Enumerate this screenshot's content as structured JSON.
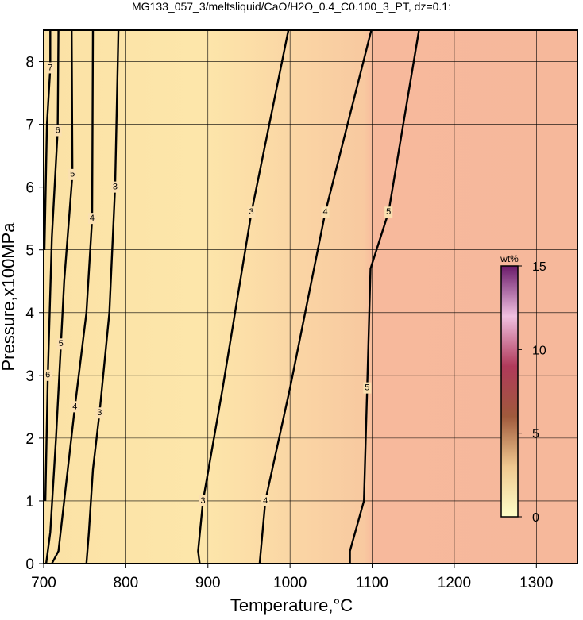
{
  "chart_data": {
    "type": "contour",
    "title": "MG133_057_3/meltsliquid/CaO/H2O_0.4_C0.100_3_PT, dz=0.1:",
    "x_label": "Temperature,°C",
    "y_label": "Pressure,x100MPa",
    "xlim": [
      700,
      1350
    ],
    "xticks": [
      700,
      800,
      900,
      1000,
      1100,
      1200,
      1300
    ],
    "ylim": [
      0,
      8.5
    ],
    "yticks": [
      0,
      1,
      2,
      3,
      4,
      5,
      6,
      7,
      8
    ],
    "grid": true,
    "contours": [
      {
        "level": 3,
        "x": [
          791,
          787,
          780,
          768,
          760,
          755,
          752
        ],
        "y": [
          8.5,
          6,
          4,
          2.4,
          1.5,
          0.5,
          0
        ]
      },
      {
        "level": 4,
        "x": [
          760,
          759,
          752,
          738,
          725,
          718,
          710
        ],
        "y": [
          8.5,
          5.5,
          4,
          2.5,
          1,
          0.2,
          0
        ]
      },
      {
        "level": 5,
        "x": [
          734,
          735,
          725,
          721,
          715,
          708,
          703
        ],
        "y": [
          8.5,
          6.2,
          4.5,
          3.5,
          2,
          0.5,
          0
        ]
      },
      {
        "level": 6,
        "x": [
          718,
          717,
          710,
          705,
          702
        ],
        "y": [
          8.5,
          6.9,
          5.2,
          3,
          1
        ]
      },
      {
        "level": 7,
        "x": [
          708,
          708,
          704,
          701
        ],
        "y": [
          8.5,
          7.9,
          7,
          5
        ]
      },
      {
        "level": 3,
        "x": [
          998,
          953,
          918,
          894,
          888,
          890
        ],
        "y": [
          8.5,
          5.6,
          2.8,
          1,
          0.2,
          0
        ]
      },
      {
        "level": 4,
        "x": [
          1099,
          1043,
          1000,
          970,
          963
        ],
        "y": [
          8.5,
          5.6,
          2.8,
          1,
          0
        ]
      },
      {
        "level": 5,
        "x": [
          1157,
          1120,
          1098,
          1094,
          1090,
          1073,
          1073
        ],
        "y": [
          8.5,
          5.6,
          4.7,
          2.8,
          1,
          0.2,
          0
        ]
      }
    ],
    "colorbar": {
      "label": "wt%",
      "lim": [
        0,
        15
      ],
      "ticks": [
        0,
        5,
        10,
        15
      ],
      "colors": [
        "#ffffc8",
        "#f0c890",
        "#a05a3c",
        "#b03a5a",
        "#f0c0e0",
        "#6a1a6a"
      ]
    }
  }
}
